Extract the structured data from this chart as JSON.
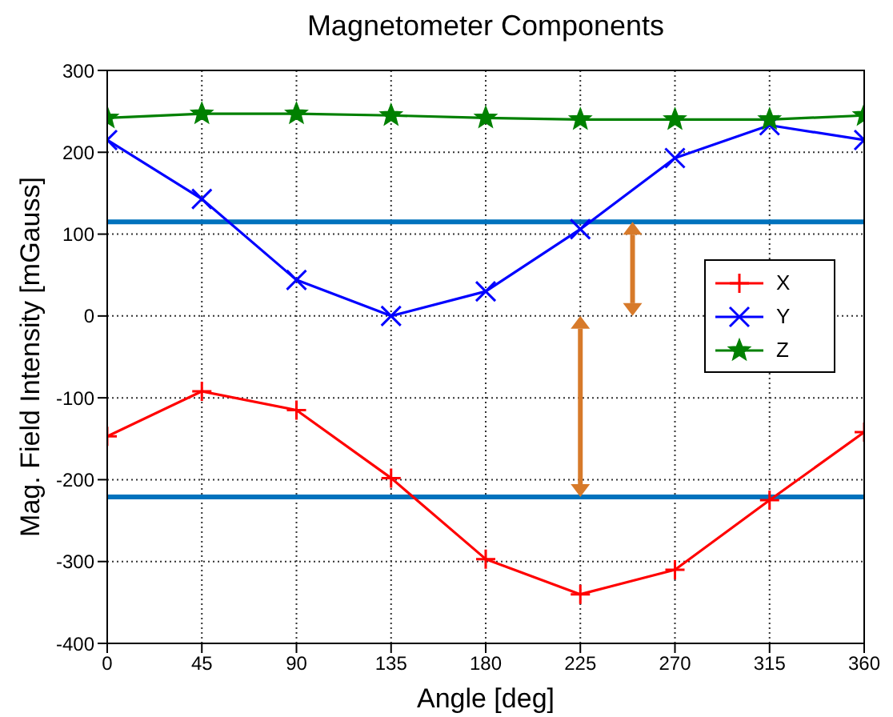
{
  "chart_data": {
    "type": "line",
    "title": "Magnetometer Components",
    "xlabel": "Angle [deg]",
    "ylabel": "Mag. Field Intensity [mGauss]",
    "x": [
      0,
      45,
      90,
      135,
      180,
      225,
      270,
      315,
      360
    ],
    "series": [
      {
        "name": "X",
        "color": "#ff0000",
        "marker": "cross",
        "values": [
          -147,
          -92,
          -115,
          -198,
          -297,
          -340,
          -310,
          -225,
          -142
        ]
      },
      {
        "name": "Y",
        "color": "#0000ff",
        "marker": "x",
        "values": [
          215,
          143,
          44,
          0,
          30,
          106,
          193,
          233,
          215
        ]
      },
      {
        "name": "Z",
        "color": "#008000",
        "marker": "star",
        "values": [
          242,
          247,
          247,
          245,
          242,
          240,
          240,
          240,
          245
        ]
      }
    ],
    "xlim": [
      0,
      360
    ],
    "xticks": [
      0,
      45,
      90,
      135,
      180,
      225,
      270,
      315,
      360
    ],
    "ylim": [
      -400,
      300
    ],
    "yticks": [
      -400,
      -300,
      -200,
      -100,
      0,
      100,
      200,
      300
    ],
    "ref_lines": [
      {
        "axis": "y",
        "value": 115,
        "color": "#0072bd"
      },
      {
        "axis": "y",
        "value": -221,
        "color": "#0072bd"
      }
    ],
    "grid": true,
    "legend": "right",
    "line_style": "solid"
  }
}
